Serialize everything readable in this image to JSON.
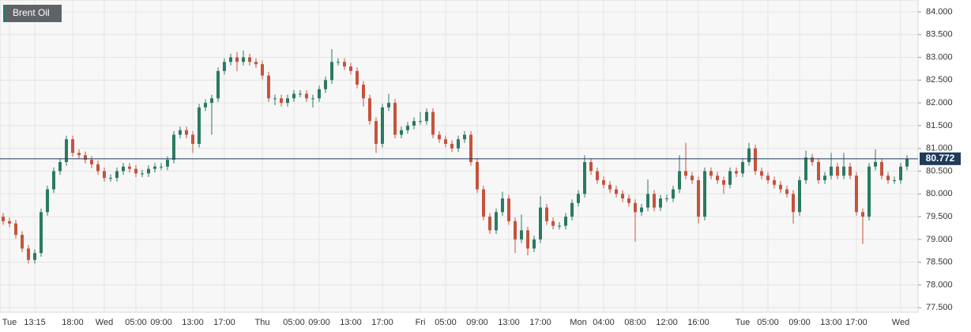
{
  "chart_data": {
    "type": "candlestick",
    "title": "Brent Oil",
    "up_color": "#2b7a63",
    "down_color": "#c5533d",
    "last_price": 80.772,
    "last_price_color": "#1f3b5b",
    "grid": true,
    "ylim": [
      77.4,
      84.26
    ],
    "yticks": [
      {
        "value": 77.5,
        "label": "77.500"
      },
      {
        "value": 78,
        "label": "78.000"
      },
      {
        "value": 78.5,
        "label": "78.500"
      },
      {
        "value": 79,
        "label": "79.000"
      },
      {
        "value": 79.5,
        "label": "79.500"
      },
      {
        "value": 80,
        "label": "80.000"
      },
      {
        "value": 80.5,
        "label": "80.500"
      },
      {
        "value": 81,
        "label": "81.000"
      },
      {
        "value": 81.5,
        "label": "81.500"
      },
      {
        "value": 82,
        "label": "82.000"
      },
      {
        "value": 82.5,
        "label": "82.500"
      },
      {
        "value": 83,
        "label": "83.000"
      },
      {
        "value": 83.5,
        "label": "83.500"
      },
      {
        "value": 84,
        "label": "84.000"
      }
    ],
    "categories": [
      null,
      "Tue",
      null,
      null,
      null,
      "13:15",
      null,
      null,
      null,
      null,
      null,
      "18:00",
      null,
      null,
      null,
      null,
      "Wed",
      null,
      null,
      null,
      null,
      "05:00",
      null,
      null,
      null,
      "09:00",
      null,
      null,
      null,
      null,
      "13:00",
      null,
      null,
      null,
      null,
      "17:00",
      null,
      null,
      null,
      null,
      null,
      "Thu",
      null,
      null,
      null,
      null,
      "05:00",
      null,
      null,
      null,
      "09:00",
      null,
      null,
      null,
      null,
      "13:00",
      null,
      null,
      null,
      null,
      "17:00",
      null,
      null,
      null,
      null,
      null,
      "Fri",
      null,
      null,
      null,
      "05:00",
      null,
      null,
      null,
      null,
      "09:00",
      null,
      null,
      null,
      null,
      "13:00",
      null,
      null,
      null,
      null,
      "17:00",
      null,
      null,
      null,
      null,
      null,
      "Mon",
      null,
      null,
      null,
      "04:00",
      null,
      null,
      null,
      null,
      "08:00",
      null,
      null,
      null,
      null,
      "12:00",
      null,
      null,
      null,
      null,
      "16:00",
      null,
      null,
      null,
      null,
      null,
      null,
      "Tue",
      null,
      null,
      null,
      "05:00",
      null,
      null,
      null,
      null,
      "09:00",
      null,
      null,
      null,
      null,
      "13:00",
      null,
      null,
      null,
      "17:00",
      null,
      null,
      null,
      null,
      null,
      null,
      "Wed",
      null
    ],
    "ohlc": [
      [
        79.5,
        79.58,
        79.32,
        79.4
      ],
      [
        79.4,
        79.48,
        79.27,
        79.35
      ],
      [
        79.35,
        79.43,
        79.02,
        79.1
      ],
      [
        79.1,
        79.18,
        78.72,
        78.8
      ],
      [
        78.8,
        78.88,
        78.47,
        78.55
      ],
      [
        78.55,
        78.78,
        78.47,
        78.7
      ],
      [
        78.7,
        79.68,
        78.62,
        79.6
      ],
      [
        79.6,
        80.18,
        79.52,
        80.1
      ],
      [
        80.1,
        80.58,
        80.02,
        80.5
      ],
      [
        80.5,
        80.78,
        80.42,
        80.7
      ],
      [
        80.7,
        81.28,
        80.62,
        81.2
      ],
      [
        81.2,
        81.28,
        80.82,
        80.9
      ],
      [
        80.9,
        80.98,
        80.77,
        80.85
      ],
      [
        80.85,
        80.93,
        80.67,
        80.75
      ],
      [
        80.75,
        80.83,
        80.57,
        80.65
      ],
      [
        80.65,
        80.73,
        80.42,
        80.5
      ],
      [
        80.5,
        80.58,
        80.27,
        80.35
      ],
      [
        80.35,
        80.43,
        80.27,
        80.35
      ],
      [
        80.35,
        80.58,
        80.27,
        80.5
      ],
      [
        80.5,
        80.68,
        80.42,
        80.6
      ],
      [
        80.6,
        80.68,
        80.47,
        80.55
      ],
      [
        80.55,
        80.63,
        80.37,
        80.45
      ],
      [
        80.45,
        80.53,
        80.37,
        80.45
      ],
      [
        80.45,
        80.63,
        80.37,
        80.55
      ],
      [
        80.55,
        80.68,
        80.47,
        80.6
      ],
      [
        80.6,
        80.68,
        80.52,
        80.6
      ],
      [
        80.6,
        80.83,
        80.52,
        80.75
      ],
      [
        80.75,
        81.38,
        80.67,
        81.3
      ],
      [
        81.3,
        81.48,
        81.22,
        81.4
      ],
      [
        81.4,
        81.48,
        81.22,
        81.3
      ],
      [
        81.3,
        81.38,
        80.9,
        81.1
      ],
      [
        81.1,
        81.98,
        81.02,
        81.9
      ],
      [
        81.9,
        82.08,
        81.82,
        82.0
      ],
      [
        82.0,
        82.18,
        81.3,
        82.1
      ],
      [
        82.1,
        82.78,
        82.02,
        82.7
      ],
      [
        82.7,
        82.98,
        82.62,
        82.9
      ],
      [
        82.9,
        83.08,
        82.82,
        83.0
      ],
      [
        83.0,
        83.12,
        82.7,
        82.9
      ],
      [
        82.9,
        83.15,
        82.82,
        83.0
      ],
      [
        83.0,
        83.08,
        82.82,
        82.9
      ],
      [
        82.9,
        82.98,
        82.77,
        82.85
      ],
      [
        82.85,
        82.93,
        82.52,
        82.6
      ],
      [
        82.6,
        82.68,
        82.02,
        82.1
      ],
      [
        82.1,
        82.18,
        81.95,
        82.1
      ],
      [
        82.1,
        82.18,
        81.92,
        82.0
      ],
      [
        82.0,
        82.18,
        81.92,
        82.1
      ],
      [
        82.1,
        82.28,
        82.02,
        82.2
      ],
      [
        82.2,
        82.28,
        82.12,
        82.2
      ],
      [
        82.2,
        82.28,
        82.02,
        82.1
      ],
      [
        82.1,
        82.18,
        81.9,
        82.1
      ],
      [
        82.1,
        82.38,
        82.02,
        82.3
      ],
      [
        82.3,
        82.58,
        82.22,
        82.5
      ],
      [
        82.5,
        83.18,
        82.42,
        82.9
      ],
      [
        82.9,
        82.98,
        82.82,
        82.9
      ],
      [
        82.9,
        82.98,
        82.72,
        82.8
      ],
      [
        82.8,
        82.88,
        82.62,
        82.7
      ],
      [
        82.7,
        82.78,
        82.32,
        82.4
      ],
      [
        82.4,
        82.48,
        81.92,
        82.1
      ],
      [
        82.1,
        82.18,
        81.52,
        81.6
      ],
      [
        81.6,
        81.68,
        80.9,
        81.1
      ],
      [
        81.1,
        81.98,
        81.02,
        81.9
      ],
      [
        81.9,
        82.2,
        81.82,
        82.0
      ],
      [
        82.0,
        82.08,
        81.22,
        81.3
      ],
      [
        81.3,
        81.48,
        81.22,
        81.4
      ],
      [
        81.4,
        81.58,
        81.32,
        81.5
      ],
      [
        81.5,
        81.68,
        81.42,
        81.6
      ],
      [
        81.6,
        81.8,
        81.52,
        81.6
      ],
      [
        81.6,
        81.88,
        81.52,
        81.8
      ],
      [
        81.8,
        81.88,
        81.22,
        81.3
      ],
      [
        81.3,
        81.38,
        81.12,
        81.2
      ],
      [
        81.2,
        81.28,
        81.02,
        81.1
      ],
      [
        81.1,
        81.18,
        80.92,
        81.0
      ],
      [
        81.0,
        81.28,
        80.92,
        81.2
      ],
      [
        81.2,
        81.38,
        81.12,
        81.3
      ],
      [
        81.3,
        81.38,
        80.62,
        80.7
      ],
      [
        80.7,
        80.78,
        80.02,
        80.1
      ],
      [
        80.1,
        80.18,
        79.42,
        79.5
      ],
      [
        79.5,
        79.58,
        79.12,
        79.2
      ],
      [
        79.2,
        79.68,
        79.12,
        79.6
      ],
      [
        79.6,
        80.05,
        79.52,
        79.9
      ],
      [
        79.9,
        79.98,
        79.32,
        79.4
      ],
      [
        79.4,
        79.48,
        78.7,
        79.0
      ],
      [
        79.0,
        79.55,
        78.92,
        79.2
      ],
      [
        79.2,
        79.28,
        78.65,
        78.8
      ],
      [
        78.8,
        79.08,
        78.72,
        79.0
      ],
      [
        79.0,
        79.95,
        78.92,
        79.7
      ],
      [
        79.7,
        79.78,
        79.32,
        79.4
      ],
      [
        79.4,
        79.48,
        79.22,
        79.3
      ],
      [
        79.3,
        79.38,
        79.22,
        79.3
      ],
      [
        79.3,
        79.58,
        79.22,
        79.5
      ],
      [
        79.5,
        79.88,
        79.42,
        79.8
      ],
      [
        79.8,
        80.08,
        79.72,
        80.0
      ],
      [
        80.0,
        80.85,
        79.92,
        80.7
      ],
      [
        80.7,
        80.78,
        80.42,
        80.5
      ],
      [
        80.5,
        80.58,
        80.22,
        80.3
      ],
      [
        80.3,
        80.38,
        80.12,
        80.2
      ],
      [
        80.2,
        80.28,
        80.02,
        80.1
      ],
      [
        80.1,
        80.18,
        79.92,
        80.0
      ],
      [
        80.0,
        80.08,
        79.82,
        79.9
      ],
      [
        79.9,
        79.98,
        79.72,
        79.8
      ],
      [
        79.8,
        79.88,
        78.95,
        79.6
      ],
      [
        79.6,
        79.78,
        79.52,
        79.7
      ],
      [
        79.7,
        80.32,
        79.62,
        80.0
      ],
      [
        80.0,
        80.08,
        79.62,
        79.7
      ],
      [
        79.7,
        79.98,
        79.62,
        79.9
      ],
      [
        79.9,
        79.98,
        79.82,
        79.9
      ],
      [
        79.9,
        80.18,
        79.82,
        80.1
      ],
      [
        80.1,
        80.85,
        80.02,
        80.5
      ],
      [
        80.5,
        81.12,
        80.32,
        80.4
      ],
      [
        80.4,
        80.48,
        80.22,
        80.3
      ],
      [
        80.3,
        80.38,
        79.35,
        79.5
      ],
      [
        79.5,
        80.58,
        79.42,
        80.5
      ],
      [
        80.5,
        80.58,
        80.32,
        80.4
      ],
      [
        80.4,
        80.48,
        80.22,
        80.3
      ],
      [
        80.3,
        80.38,
        80.0,
        80.2
      ],
      [
        80.2,
        80.58,
        80.12,
        80.5
      ],
      [
        80.5,
        80.58,
        80.37,
        80.45
      ],
      [
        80.45,
        80.78,
        80.37,
        80.7
      ],
      [
        80.7,
        81.12,
        80.62,
        81.0
      ],
      [
        81.0,
        81.08,
        80.42,
        80.5
      ],
      [
        80.5,
        80.58,
        80.32,
        80.4
      ],
      [
        80.4,
        80.48,
        80.22,
        80.3
      ],
      [
        80.3,
        80.38,
        80.12,
        80.2
      ],
      [
        80.2,
        80.28,
        80.02,
        80.1
      ],
      [
        80.1,
        80.18,
        79.92,
        80.0
      ],
      [
        80.0,
        80.08,
        79.35,
        79.6
      ],
      [
        79.6,
        80.38,
        79.52,
        80.3
      ],
      [
        80.3,
        80.95,
        80.22,
        80.8
      ],
      [
        80.8,
        80.88,
        80.62,
        80.7
      ],
      [
        80.7,
        80.78,
        80.22,
        80.3
      ],
      [
        80.3,
        80.48,
        80.22,
        80.4
      ],
      [
        80.4,
        80.9,
        80.32,
        80.6
      ],
      [
        80.6,
        80.68,
        80.32,
        80.4
      ],
      [
        80.4,
        80.9,
        80.32,
        80.6
      ],
      [
        80.6,
        80.68,
        80.32,
        80.4
      ],
      [
        80.4,
        80.48,
        79.52,
        79.6
      ],
      [
        79.6,
        79.68,
        78.9,
        79.5
      ],
      [
        79.5,
        80.68,
        79.42,
        80.6
      ],
      [
        80.6,
        80.98,
        80.52,
        80.7
      ],
      [
        80.7,
        80.78,
        80.32,
        80.4
      ],
      [
        80.4,
        80.48,
        80.22,
        80.3
      ],
      [
        80.3,
        80.38,
        80.22,
        80.3
      ],
      [
        80.3,
        80.68,
        80.22,
        80.6
      ],
      [
        80.6,
        80.85,
        80.52,
        80.772
      ]
    ]
  }
}
